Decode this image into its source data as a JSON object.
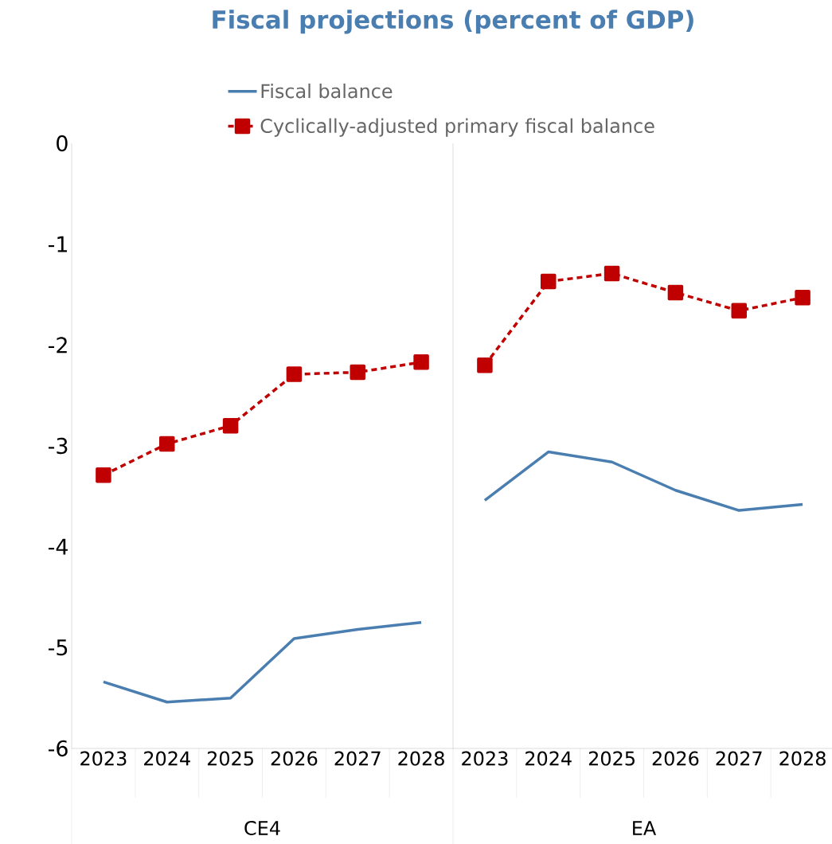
{
  "chart_data": [
    {
      "type": "line",
      "title": "Fiscal projections (percent of GDP)",
      "xlabel": "CE4",
      "categories": [
        "2023",
        "2024",
        "2025",
        "2026",
        "2027",
        "2028"
      ],
      "ylim": [
        -6,
        0
      ],
      "yticks": [
        0,
        -1,
        -2,
        -3,
        -4,
        -5,
        -6
      ],
      "legend": "top",
      "series": [
        {
          "name": "Fiscal balance",
          "color": "#4a7eb0",
          "marker": "none",
          "line_style": "solid",
          "values": [
            -5.34,
            -5.54,
            -5.5,
            -4.91,
            -4.82,
            -4.75
          ]
        },
        {
          "name": "Cyclically-adjusted primary fiscal balance",
          "color": "#c00000",
          "marker": "square",
          "line_style": "dashed",
          "values": [
            -3.29,
            -2.98,
            -2.8,
            -2.29,
            -2.27,
            -2.17
          ]
        }
      ]
    },
    {
      "type": "line",
      "xlabel": "EA",
      "categories": [
        "2023",
        "2024",
        "2025",
        "2026",
        "2027",
        "2028"
      ],
      "ylim": [
        -6,
        0
      ],
      "yticks": [
        0,
        -1,
        -2,
        -3,
        -4,
        -5,
        -6
      ],
      "tick_labels": "x",
      "series": [
        {
          "color": "#4a7eb0",
          "marker": "none",
          "line_style": "solid",
          "values": [
            -3.54,
            -3.06,
            -3.16,
            -3.44,
            -3.64,
            -3.58
          ]
        },
        {
          "color": "#c00000",
          "marker": "square",
          "line_style": "dashed",
          "values": [
            -2.2,
            -1.37,
            -1.29,
            -1.48,
            -1.66,
            -1.53
          ]
        }
      ]
    }
  ]
}
